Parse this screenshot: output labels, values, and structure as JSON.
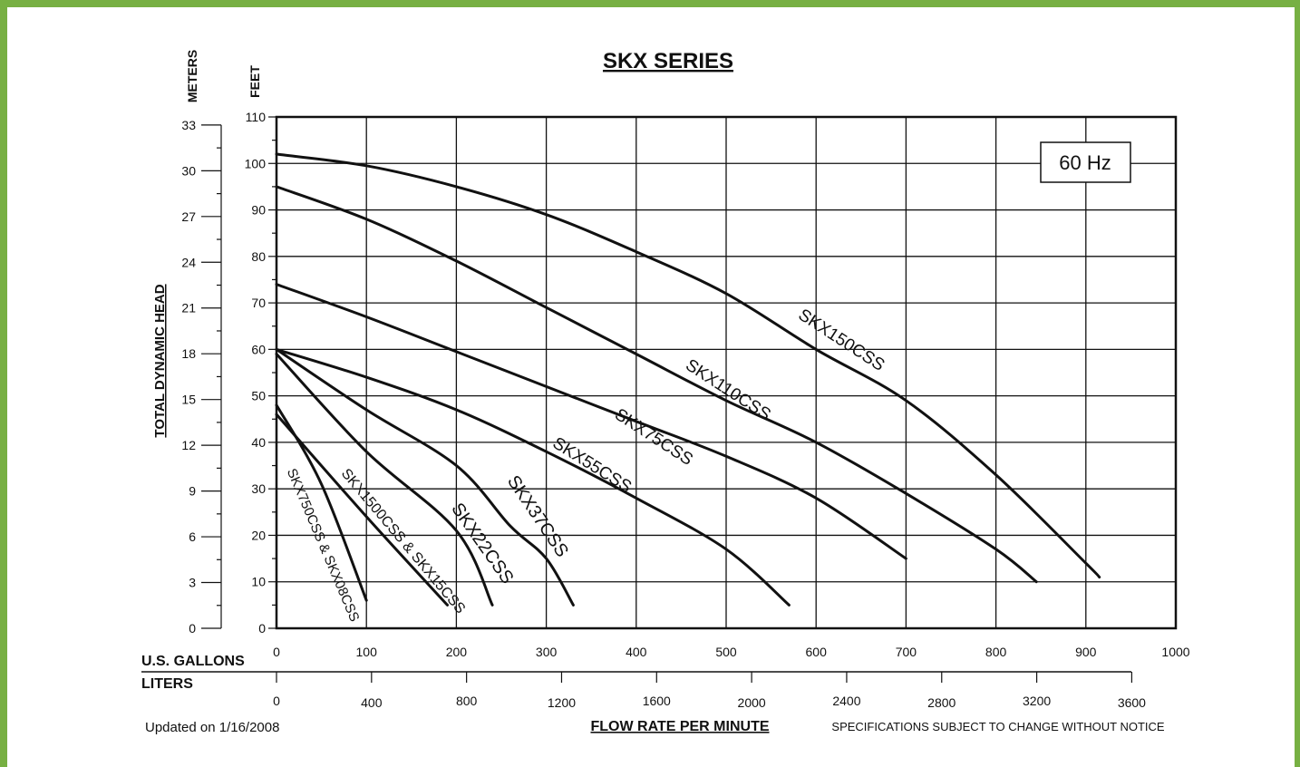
{
  "chart_data": {
    "type": "line",
    "title": "SKX SERIES",
    "frequency_badge": "60 Hz",
    "y_label": "TOTAL DYNAMIC HEAD",
    "y_unit_feet": "FEET",
    "y_unit_meters": "METERS",
    "x_unit_gallons": "U.S. GALLONS",
    "x_unit_liters": "LITERS",
    "x_label": "FLOW RATE PER MINUTE",
    "updated_note": "Updated on 1/16/2008",
    "spec_note": "SPECIFICATIONS SUBJECT TO CHANGE WITHOUT NOTICE",
    "xlim": [
      0,
      1000
    ],
    "ylim": [
      0,
      110
    ],
    "grid": true,
    "x_ticks": [
      "0",
      "100",
      "200",
      "300",
      "400",
      "500",
      "600",
      "700",
      "800",
      "900",
      "1000"
    ],
    "y_ticks": [
      "0",
      "10",
      "20",
      "30",
      "40",
      "50",
      "60",
      "70",
      "80",
      "90",
      "100",
      "110"
    ],
    "meter_ticks": [
      "0",
      "3",
      "6",
      "9",
      "12",
      "15",
      "18",
      "21",
      "24",
      "27",
      "30",
      "33"
    ],
    "liter_ticks": [
      "0",
      "400",
      "800",
      "1200",
      "1600",
      "2000",
      "2400",
      "2800",
      "3200",
      "3600"
    ],
    "series": [
      {
        "name": "SKX150CSS",
        "points": [
          [
            0,
            102
          ],
          [
            100,
            99.5
          ],
          [
            200,
            95
          ],
          [
            300,
            89
          ],
          [
            400,
            81
          ],
          [
            500,
            72
          ],
          [
            600,
            60
          ],
          [
            700,
            49
          ],
          [
            800,
            33
          ],
          [
            900,
            14
          ],
          [
            915,
            11
          ]
        ]
      },
      {
        "name": "SKX110CSS",
        "points": [
          [
            0,
            95
          ],
          [
            100,
            88
          ],
          [
            200,
            79
          ],
          [
            300,
            69
          ],
          [
            400,
            59
          ],
          [
            500,
            49
          ],
          [
            600,
            40
          ],
          [
            700,
            29
          ],
          [
            800,
            17
          ],
          [
            845,
            10
          ]
        ]
      },
      {
        "name": "SKX75CSS",
        "points": [
          [
            0,
            74
          ],
          [
            100,
            67
          ],
          [
            200,
            59.5
          ],
          [
            300,
            52
          ],
          [
            400,
            44.5
          ],
          [
            500,
            37
          ],
          [
            600,
            28
          ],
          [
            700,
            15
          ]
        ]
      },
      {
        "name": "SKX55CSS",
        "points": [
          [
            0,
            60
          ],
          [
            100,
            54
          ],
          [
            200,
            47
          ],
          [
            300,
            38
          ],
          [
            400,
            28
          ],
          [
            500,
            17
          ],
          [
            570,
            5
          ]
        ]
      },
      {
        "name": "SKX37CSS",
        "points": [
          [
            0,
            60
          ],
          [
            100,
            47
          ],
          [
            200,
            35
          ],
          [
            260,
            22
          ],
          [
            300,
            15
          ],
          [
            330,
            5
          ]
        ]
      },
      {
        "name": "SKX22CSS",
        "points": [
          [
            0,
            59
          ],
          [
            100,
            38
          ],
          [
            200,
            21
          ],
          [
            240,
            5
          ]
        ]
      },
      {
        "name": "SKX1500CSS & SKX15CSS",
        "points": [
          [
            0,
            46
          ],
          [
            100,
            24
          ],
          [
            190,
            5
          ]
        ]
      },
      {
        "name": "SKX750CSS & SKX08CSS",
        "points": [
          [
            0,
            48
          ],
          [
            50,
            31
          ],
          [
            100,
            6
          ]
        ]
      }
    ]
  }
}
